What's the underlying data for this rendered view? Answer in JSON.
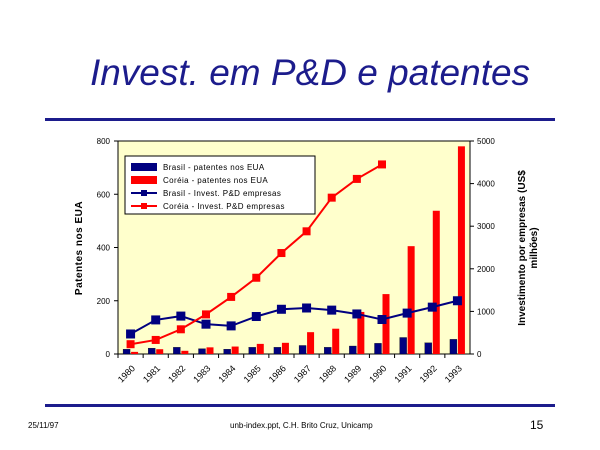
{
  "slide": {
    "title": "Invest. em P&D e patentes",
    "footer_date": "25/11/97",
    "footer_source": "unb-index.ppt, C.H. Brito Cruz, Unicamp",
    "page_number": "15"
  },
  "colors": {
    "title": "#1c1c8c",
    "plot_bg": "#ffffcc",
    "brasil": "#000080",
    "coreia": "#ff0000"
  },
  "chart_data": {
    "type": "bar",
    "categories": [
      "1980",
      "1981",
      "1982",
      "1983",
      "1984",
      "1985",
      "1986",
      "1987",
      "1988",
      "1989",
      "1990",
      "1991",
      "1992",
      "1993"
    ],
    "ylabel": "Patentes nos EUA",
    "y2label": "Investimento por empresas (US$ milhões)",
    "ylim": [
      0,
      800
    ],
    "y2lim": [
      0,
      5000
    ],
    "yticks": [
      "0",
      "200",
      "400",
      "600",
      "800"
    ],
    "y2ticks": [
      "0",
      "1000",
      "2000",
      "3000",
      "4000",
      "5000"
    ],
    "legend_position": "top-left",
    "series": [
      {
        "name": "Brasil - patentes nos EUA",
        "type": "bar",
        "axis": "left",
        "values": [
          18,
          22,
          25,
          20,
          18,
          25,
          25,
          32,
          25,
          30,
          40,
          62,
          42,
          55
        ]
      },
      {
        "name": "Coréia - patentes nos EUA",
        "type": "bar",
        "axis": "left",
        "values": [
          8,
          18,
          12,
          25,
          28,
          38,
          42,
          82,
          95,
          158,
          225,
          405,
          538,
          780
        ]
      },
      {
        "name": "Brasil - Invest. P&D empresas",
        "type": "line",
        "axis": "right",
        "values": [
          470,
          800,
          890,
          700,
          660,
          880,
          1050,
          1080,
          1030,
          940,
          810,
          960,
          1100,
          1250
        ]
      },
      {
        "name": "Coréia - Invest. P&D empresas",
        "type": "line",
        "axis": "right",
        "values": [
          230,
          330,
          580,
          930,
          1340,
          1790,
          2370,
          2880,
          3670,
          4110,
          4450,
          null,
          null,
          null
        ]
      }
    ]
  }
}
